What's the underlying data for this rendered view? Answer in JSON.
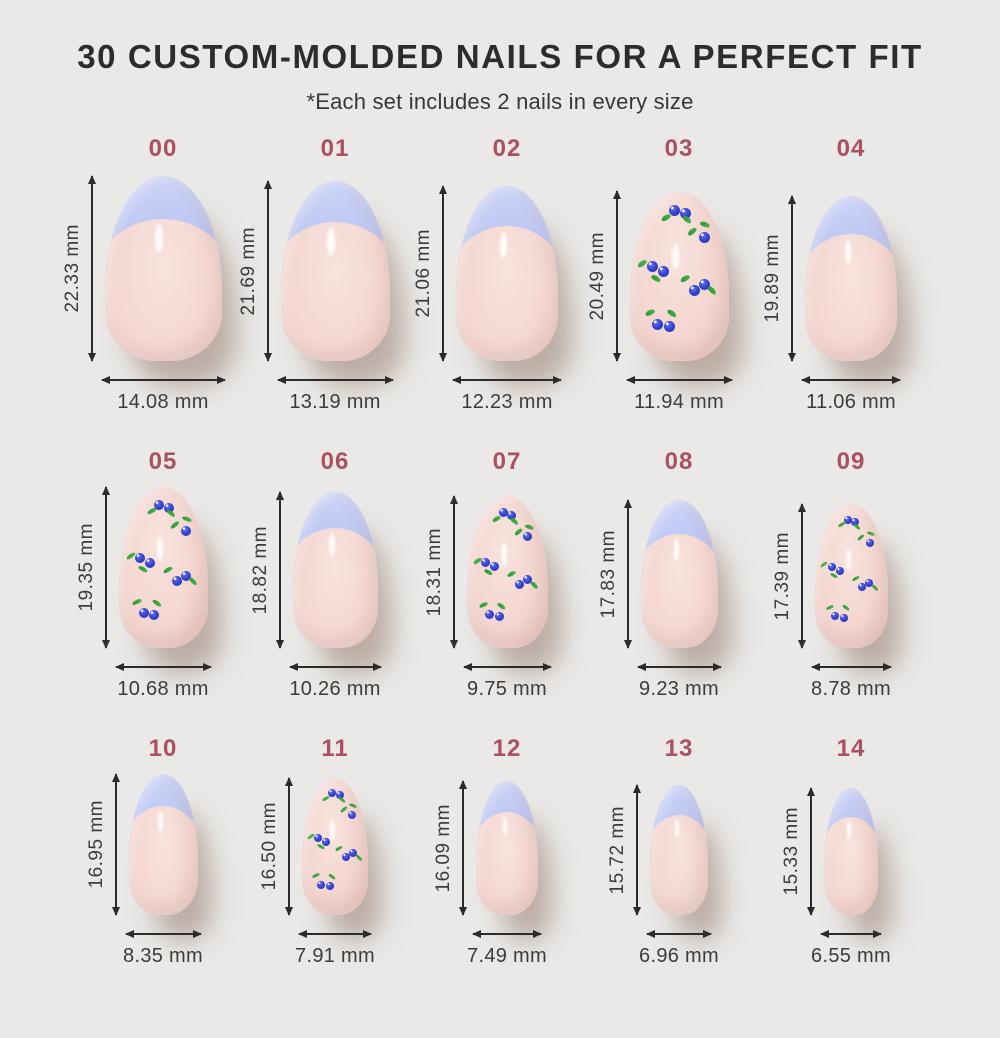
{
  "header": {
    "title": "30 CUSTOM-MOLDED NAILS FOR A PERFECT FIT",
    "subtitle": "*Each set includes 2 nails in every size"
  },
  "rows": [
    [
      {
        "id": "00",
        "height": "22.33 mm",
        "width": "14.08 mm",
        "design": "french"
      },
      {
        "id": "01",
        "height": "21.69 mm",
        "width": "13.19 mm",
        "design": "french"
      },
      {
        "id": "02",
        "height": "21.06 mm",
        "width": "12.23 mm",
        "design": "french"
      },
      {
        "id": "03",
        "height": "20.49 mm",
        "width": "11.94 mm",
        "design": "blueberry"
      },
      {
        "id": "04",
        "height": "19.89 mm",
        "width": "11.06 mm",
        "design": "french"
      }
    ],
    [
      {
        "id": "05",
        "height": "19.35 mm",
        "width": "10.68 mm",
        "design": "blueberry"
      },
      {
        "id": "06",
        "height": "18.82 mm",
        "width": "10.26 mm",
        "design": "french"
      },
      {
        "id": "07",
        "height": "18.31 mm",
        "width": "9.75 mm",
        "design": "blueberry"
      },
      {
        "id": "08",
        "height": "17.83 mm",
        "width": "9.23 mm",
        "design": "french"
      },
      {
        "id": "09",
        "height": "17.39 mm",
        "width": "8.78 mm",
        "design": "blueberry"
      }
    ],
    [
      {
        "id": "10",
        "height": "16.95 mm",
        "width": "8.35 mm",
        "design": "french"
      },
      {
        "id": "11",
        "height": "16.50 mm",
        "width": "7.91 mm",
        "design": "blueberry"
      },
      {
        "id": "12",
        "height": "16.09 mm",
        "width": "7.49 mm",
        "design": "french"
      },
      {
        "id": "13",
        "height": "15.72 mm",
        "width": "6.96 mm",
        "design": "french"
      },
      {
        "id": "14",
        "height": "15.33 mm",
        "width": "6.55 mm",
        "design": "french"
      }
    ]
  ],
  "colors": {
    "background": "#eae9e7",
    "title_text": "#2e2c2b",
    "subtitle_text": "#373737",
    "size_label": "#aa5060",
    "measure_text": "#3b3b3b",
    "arrow": "#2b2b2b",
    "tip_lavender": "#bcc6f2",
    "tip_lavender_light": "#ccd4f7",
    "base_pink": "#f4d6d0",
    "base_pink_light": "#f8e3dd",
    "base_pink_deep": "#ecc6c0",
    "berry_blue": "#3644d2",
    "berry_blue_dark": "#202eb4",
    "berry_blue_light": "#6b77ec",
    "leaf_green": "#2f9a33",
    "shadow": "rgba(150,123,112,0.55)"
  }
}
